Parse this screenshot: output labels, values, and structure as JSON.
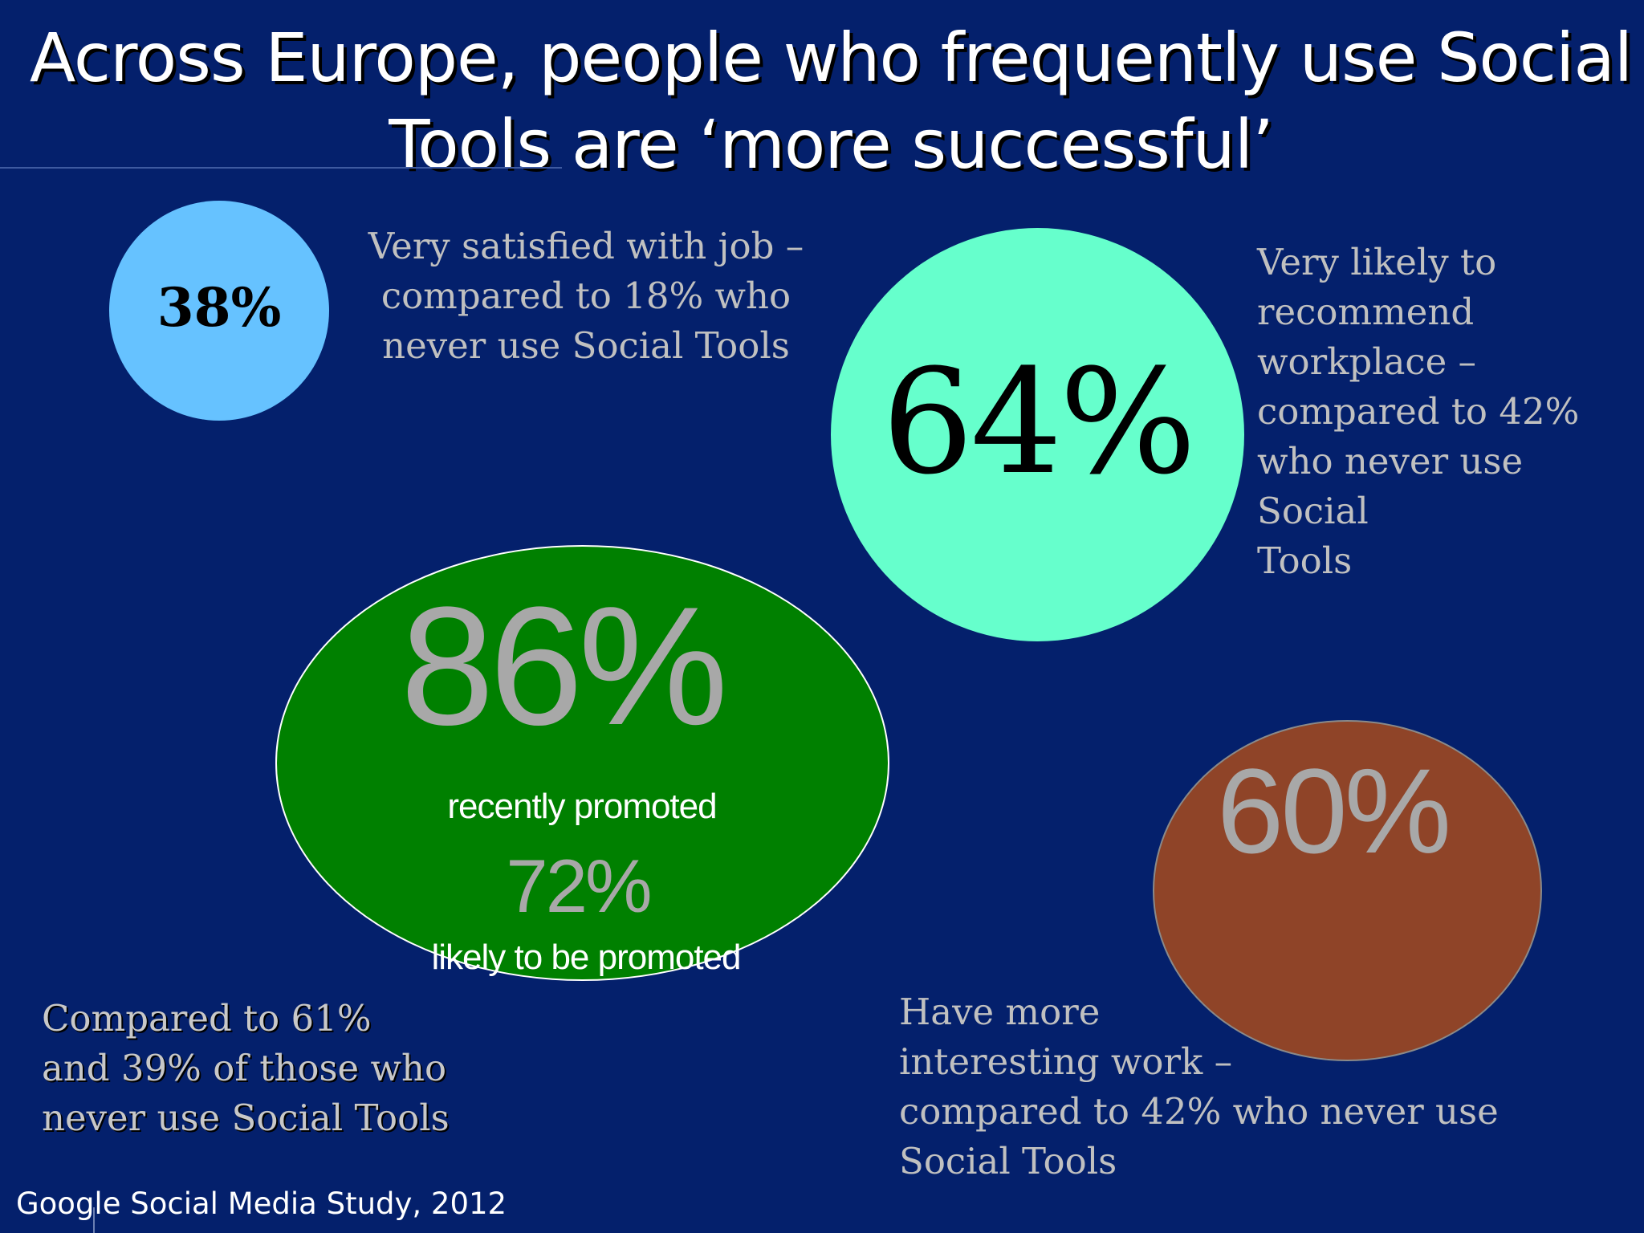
{
  "slide": {
    "title": "Across Europe, people who frequently use Social Tools are ‘more successful’",
    "source": "Google Social Media Study, 2012"
  },
  "stats": {
    "job_satisfaction": {
      "value": "38%",
      "description_lines": [
        "Very satisfied with job –",
        "compared to 18% who",
        "never use Social Tools"
      ],
      "color": "#66c2ff"
    },
    "recommend_workplace": {
      "value": "64%",
      "description_lines": [
        "Very likely to",
        "recommend",
        "workplace –",
        "compared to 42%",
        "who never use Social",
        "Tools"
      ],
      "color": "#66ffcc"
    },
    "promotion": {
      "value": "86%",
      "label": "recently promoted",
      "secondary_value": "72%",
      "secondary_label": "likely to be promoted",
      "description_lines": [
        "Compared to 61%",
        "and 39% of those who",
        "never use Social Tools"
      ],
      "color": "#008000"
    },
    "interesting_work": {
      "value": "60%",
      "description_lines": [
        "Have more",
        "interesting work –",
        "compared to 42% who never use",
        "Social Tools"
      ],
      "color": "#8f4428"
    }
  },
  "colors": {
    "background": "#04206c",
    "title_text": "#ffffff",
    "big_number_gray": "#a8a8a8"
  }
}
